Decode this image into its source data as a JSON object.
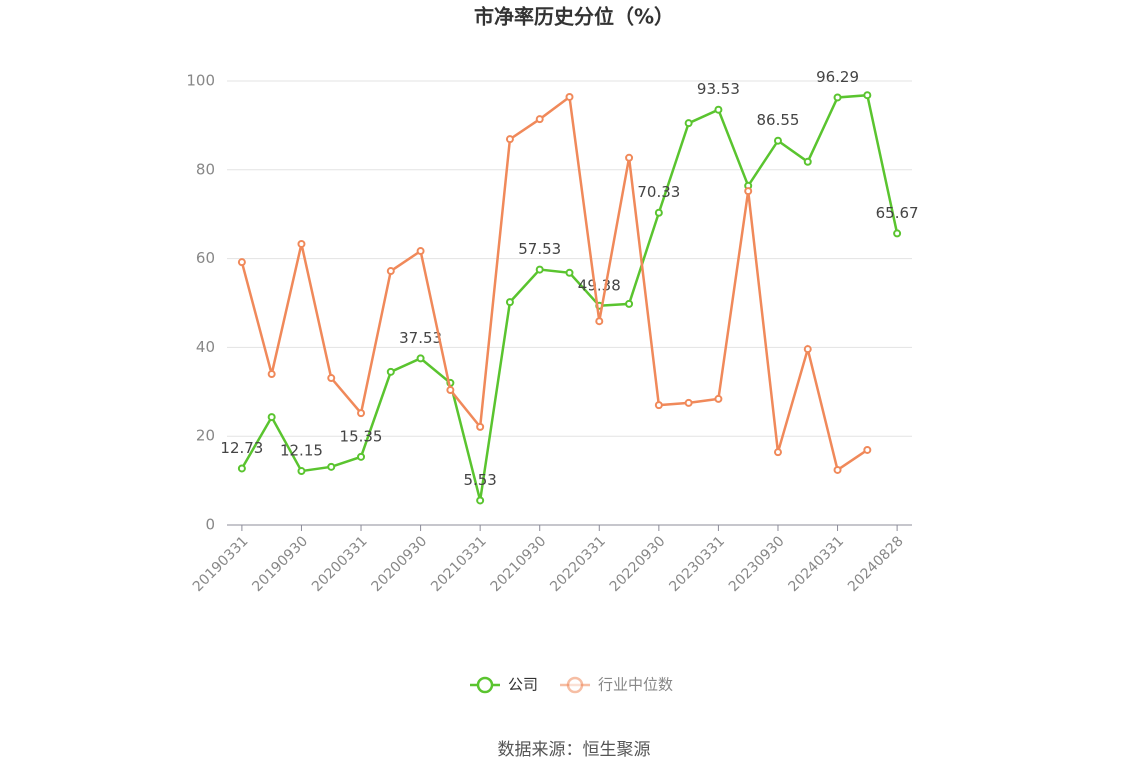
{
  "chart_data": {
    "type": "line",
    "title": "市净率历史分位（%）",
    "source": "数据来源：恒生聚源",
    "categories": [
      "20190331",
      null,
      "20190930",
      null,
      "20200331",
      null,
      "20200930",
      null,
      "20210331",
      null,
      "20210930",
      null,
      "20220331",
      null,
      "20220930",
      null,
      "20230331",
      null,
      "20230930",
      null,
      "20240331",
      null,
      "20240828"
    ],
    "series": [
      {
        "name": "公司",
        "color": "#5ac42f",
        "values": [
          12.73,
          24.3,
          12.15,
          13.1,
          15.35,
          34.5,
          37.53,
          32.0,
          5.53,
          50.2,
          57.53,
          56.8,
          49.38,
          49.8,
          70.33,
          90.5,
          93.53,
          76.4,
          86.55,
          81.8,
          96.29,
          96.8,
          65.67
        ],
        "value_labels": [
          "12.73",
          null,
          "12.15",
          null,
          "15.35",
          null,
          "37.53",
          null,
          "5.53",
          null,
          "57.53",
          null,
          "49.38",
          null,
          "70.33",
          null,
          "93.53",
          null,
          "86.55",
          null,
          "96.29",
          null,
          "65.67"
        ]
      },
      {
        "name": "行业中位数",
        "color": "#f0895a",
        "values": [
          59.2,
          34.0,
          63.3,
          33.1,
          25.2,
          57.2,
          61.7,
          30.4,
          22.1,
          86.9,
          91.4,
          96.4,
          45.9,
          82.7,
          27.0,
          27.5,
          28.4,
          75.2,
          16.4,
          39.6,
          12.4,
          16.9,
          null
        ]
      }
    ],
    "ylim": [
      0,
      100
    ],
    "yticks": [
      0,
      20,
      40,
      60,
      80,
      100
    ],
    "grid": true
  }
}
